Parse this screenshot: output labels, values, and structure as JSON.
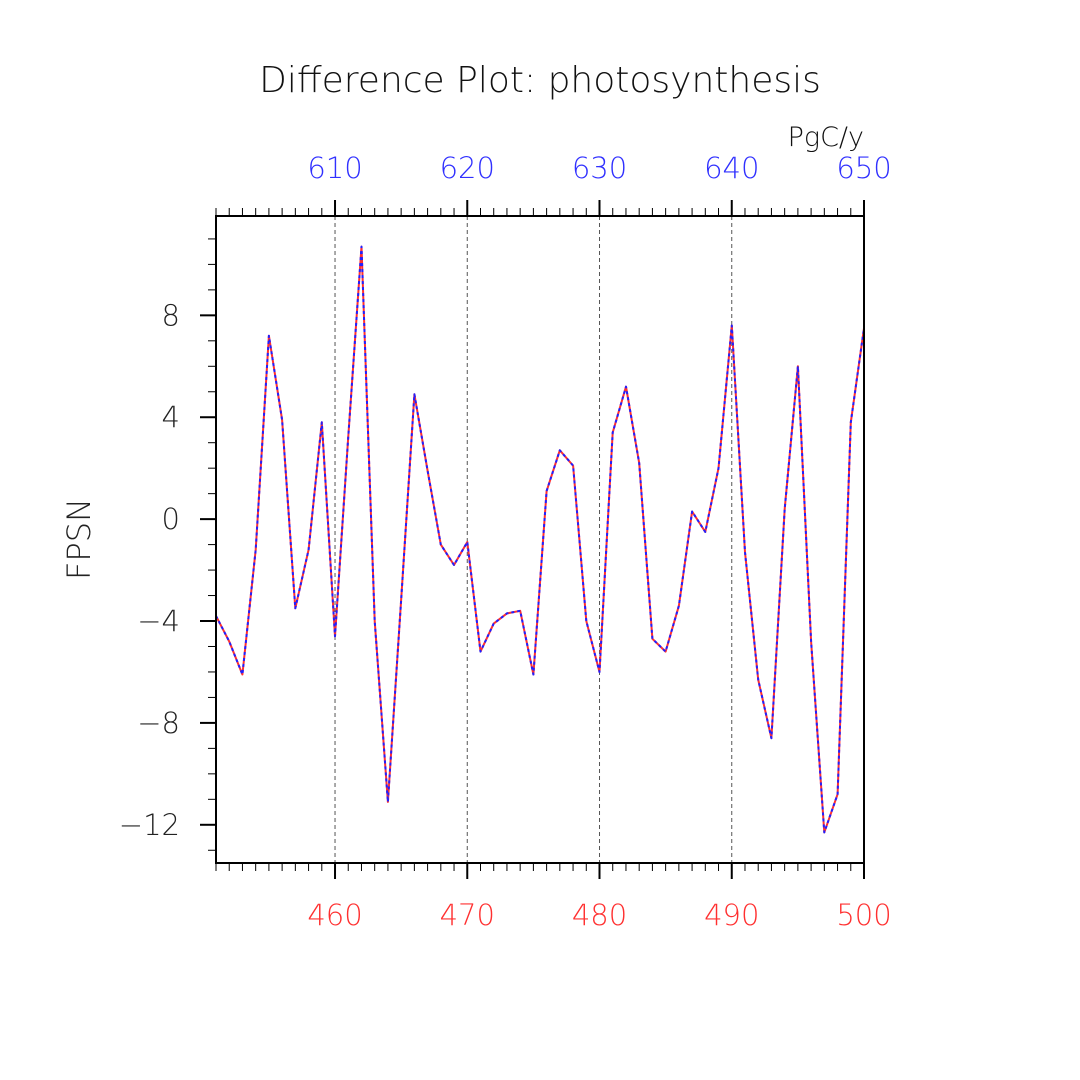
{
  "chart_data": {
    "type": "line",
    "title": "Difference Plot: photosynthesis",
    "ylabel": "FPSN",
    "units": "PgC/y",
    "bottom_axis": {
      "ticks": [
        460,
        470,
        480,
        490,
        500
      ],
      "range": [
        451,
        500
      ],
      "color": "#ff3030"
    },
    "top_axis": {
      "ticks": [
        610,
        620,
        630,
        640,
        650
      ],
      "range": [
        601,
        650
      ],
      "color": "#3030ff"
    },
    "y_axis": {
      "ticks": [
        8,
        4,
        0,
        -4,
        -8,
        -12
      ],
      "tick_labels": [
        "8",
        "4",
        "0",
        "−4",
        "−8",
        "−12"
      ],
      "range": [
        -13.5,
        11.9
      ]
    },
    "grid": "dashed vertical lines at major bottom ticks",
    "series": [
      {
        "color": "#ff3030",
        "style": "solid",
        "x": [
          451,
          452,
          453,
          454,
          455,
          456,
          457,
          458,
          459,
          460,
          461,
          462,
          463,
          464,
          465,
          466,
          467,
          468,
          469,
          470,
          471,
          472,
          473,
          474,
          475,
          476,
          477,
          478,
          479,
          480,
          481,
          482,
          483,
          484,
          485,
          486,
          487,
          488,
          489,
          490,
          491,
          492,
          493,
          494,
          495,
          496,
          497,
          498,
          499,
          500
        ],
        "values": [
          -3.8,
          -4.8,
          -6.1,
          -1.2,
          7.2,
          3.9,
          -3.5,
          -1.2,
          3.8,
          -4.6,
          3.2,
          10.7,
          -4.0,
          -11.1,
          -3.2,
          4.9,
          1.9,
          -1.0,
          -1.8,
          -0.9,
          -5.2,
          -4.1,
          -3.7,
          -3.6,
          -6.1,
          1.1,
          2.7,
          2.1,
          -4.0,
          -6.0,
          3.4,
          5.2,
          2.2,
          -4.7,
          -5.2,
          -3.4,
          0.3,
          -0.5,
          2.0,
          7.6,
          -1.3,
          -6.3,
          -8.6,
          0.4,
          6.0,
          -4.8,
          -12.3,
          -10.8,
          3.8,
          7.5
        ]
      },
      {
        "color": "#2020ff",
        "style": "dashed",
        "x": [
          601,
          602,
          603,
          604,
          605,
          606,
          607,
          608,
          609,
          610,
          611,
          612,
          613,
          614,
          615,
          616,
          617,
          618,
          619,
          620,
          621,
          622,
          623,
          624,
          625,
          626,
          627,
          628,
          629,
          630,
          631,
          632,
          633,
          634,
          635,
          636,
          637,
          638,
          639,
          640,
          641,
          642,
          643,
          644,
          645,
          646,
          647,
          648,
          649,
          650
        ],
        "values": [
          -3.8,
          -4.8,
          -6.1,
          -1.2,
          7.2,
          3.9,
          -3.5,
          -1.2,
          3.8,
          -4.6,
          3.2,
          10.7,
          -4.0,
          -11.1,
          -3.2,
          4.9,
          1.9,
          -1.0,
          -1.8,
          -0.9,
          -5.2,
          -4.1,
          -3.7,
          -3.6,
          -6.1,
          1.1,
          2.7,
          2.1,
          -4.0,
          -6.0,
          3.4,
          5.2,
          2.2,
          -4.7,
          -5.2,
          -3.4,
          0.3,
          -0.5,
          2.0,
          7.6,
          -1.3,
          -6.3,
          -8.6,
          0.4,
          6.0,
          -4.8,
          -12.3,
          -10.8,
          3.8,
          7.5
        ]
      }
    ]
  }
}
